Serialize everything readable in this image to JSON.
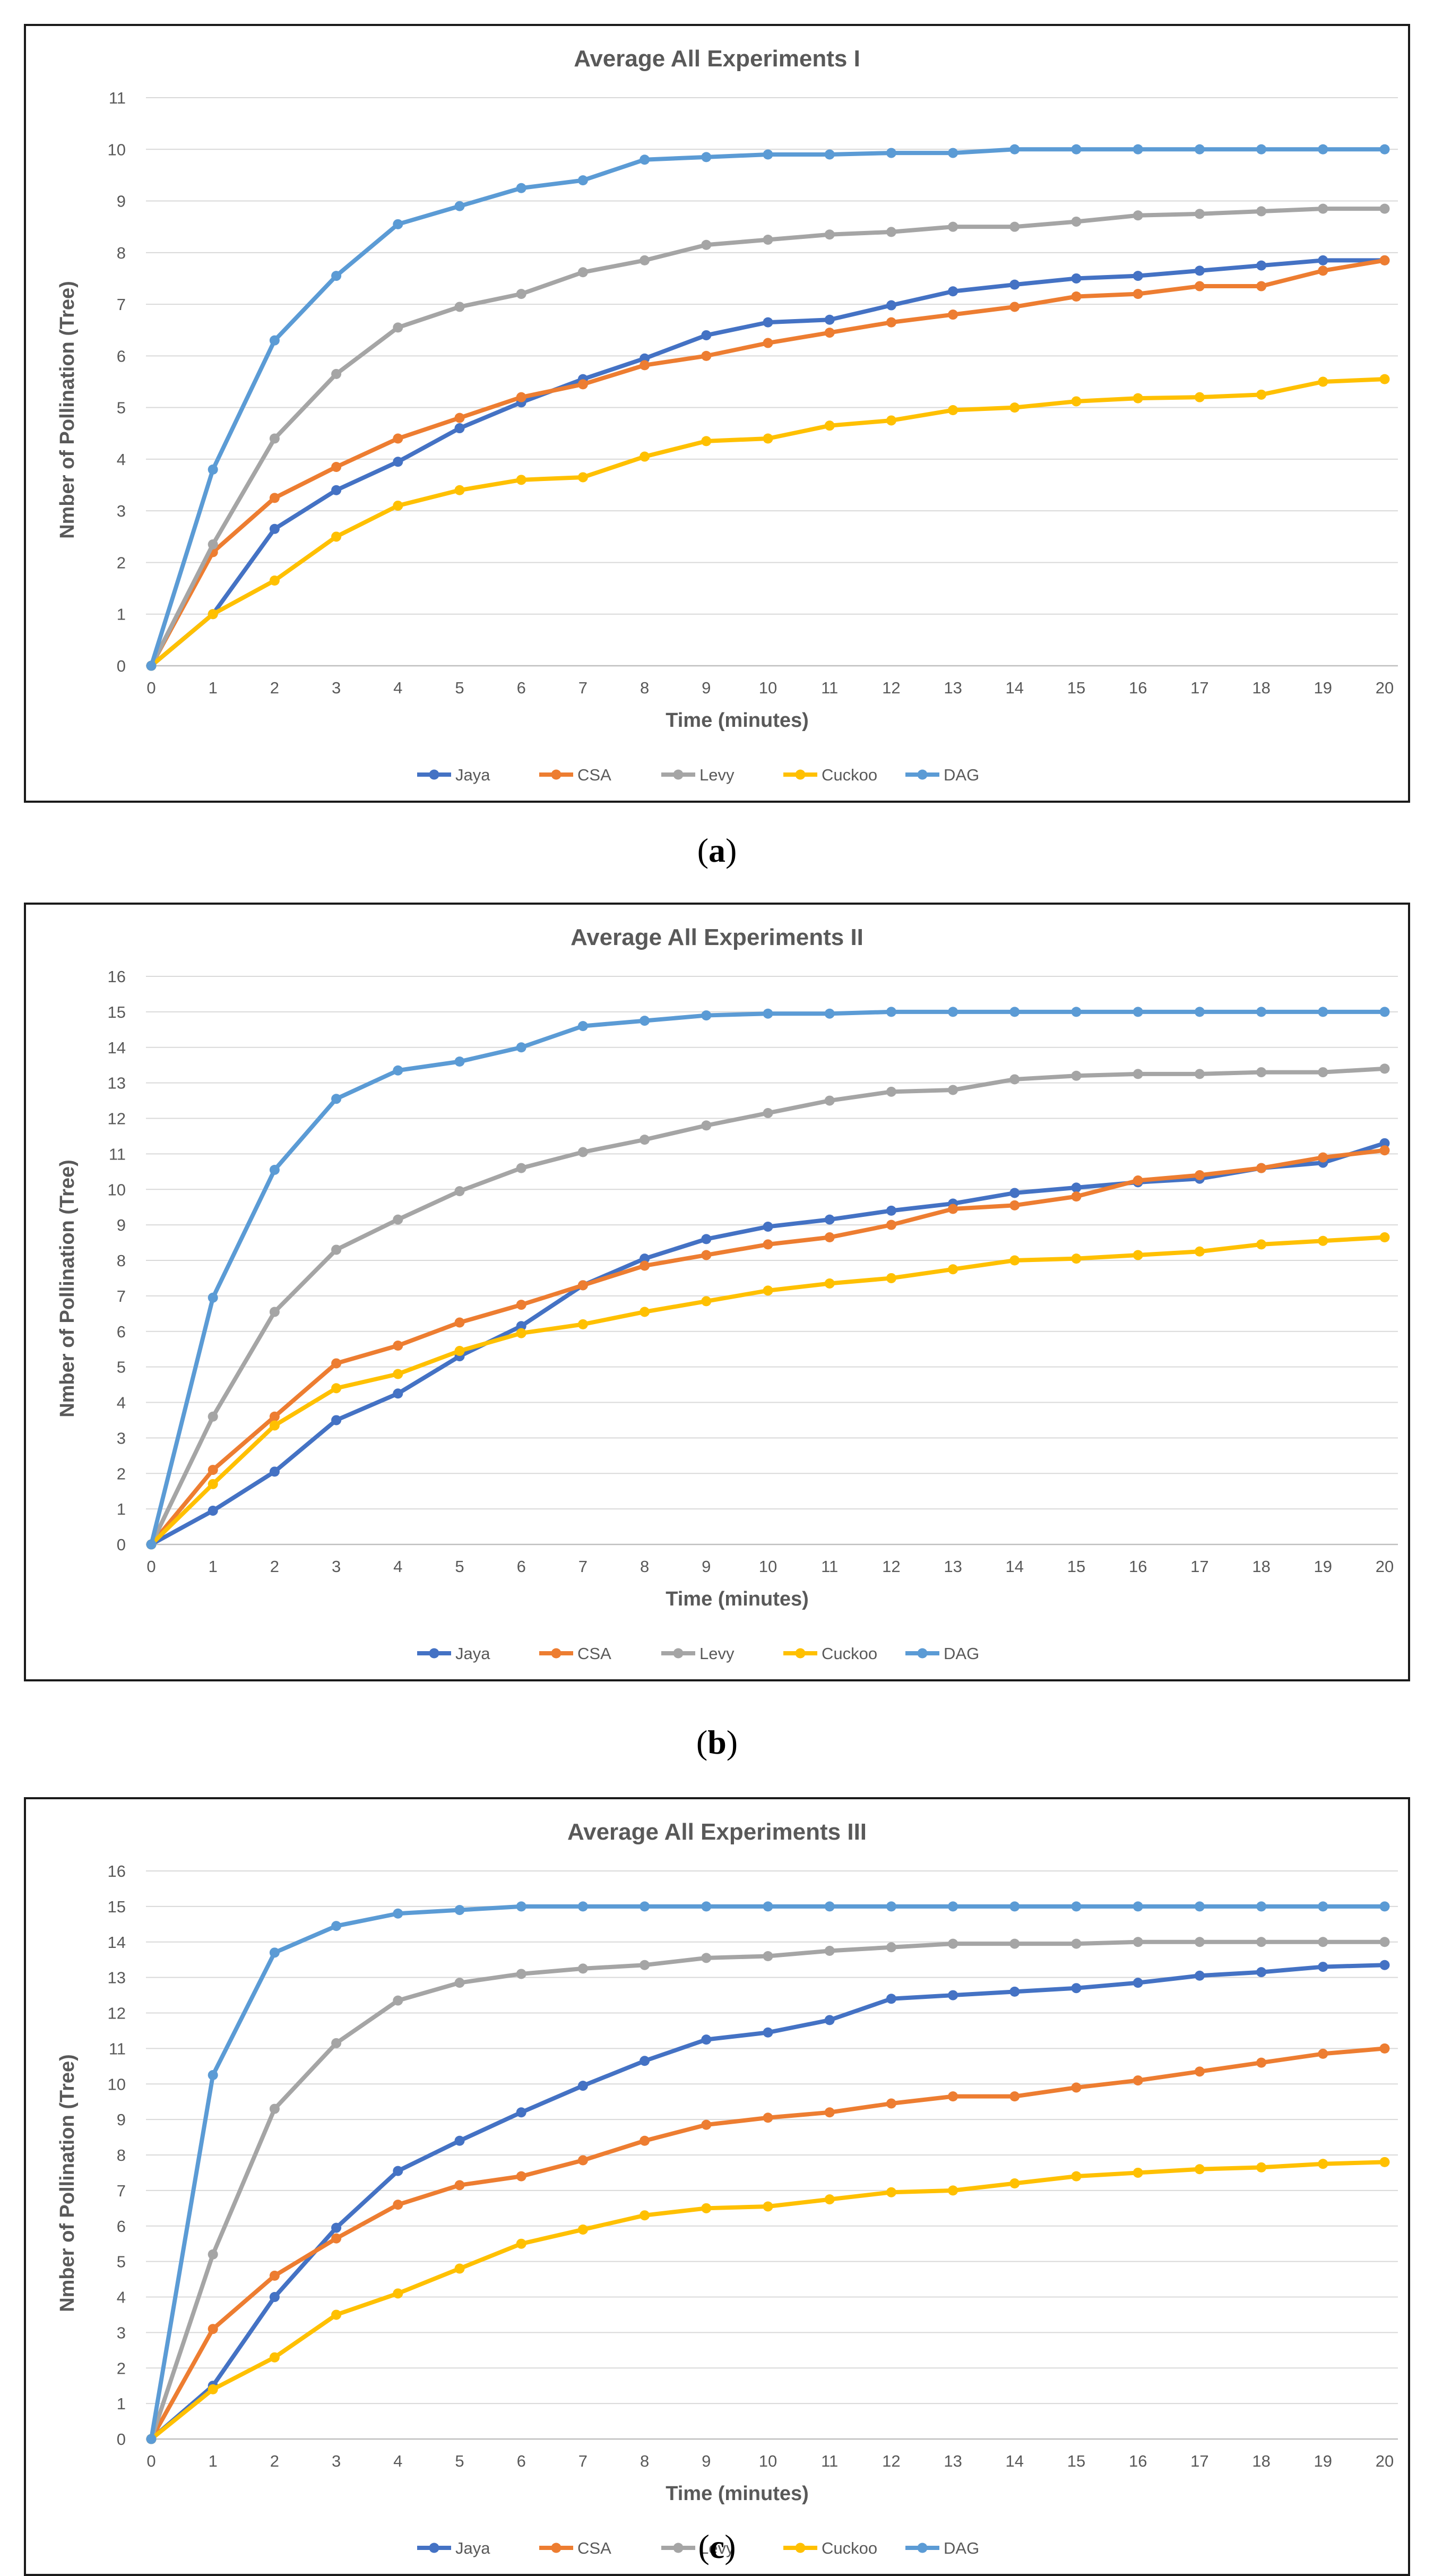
{
  "colors": {
    "Jaya": "#4472C4",
    "CSA": "#ED7D31",
    "Levy": "#A5A5A5",
    "Cuckoo": "#FFC000",
    "DAG": "#5B9BD5"
  },
  "captions": [
    {
      "open": "(",
      "letter": "a",
      "close": ")"
    },
    {
      "open": "(",
      "letter": "b",
      "close": ")"
    },
    {
      "open": "(",
      "letter": "c",
      "close": ")"
    }
  ],
  "chart_data": [
    {
      "type": "line",
      "title": "Average All Experiments I",
      "xlabel": "Time (minutes)",
      "ylabel": "Nmber of Pollination (Tree)",
      "x": [
        0,
        1,
        2,
        3,
        4,
        5,
        6,
        7,
        8,
        9,
        10,
        11,
        12,
        13,
        14,
        15,
        16,
        17,
        18,
        19,
        20
      ],
      "ylim": [
        0,
        11
      ],
      "yticks": [
        0,
        1,
        2,
        3,
        4,
        5,
        6,
        7,
        8,
        9,
        10,
        11
      ],
      "grid": true,
      "legend": "bottom",
      "series": [
        {
          "name": "Jaya",
          "values": [
            0,
            1.0,
            2.65,
            3.4,
            3.95,
            4.6,
            5.1,
            5.55,
            5.95,
            6.4,
            6.65,
            6.7,
            6.98,
            7.25,
            7.38,
            7.5,
            7.55,
            7.65,
            7.75,
            7.85,
            7.85
          ]
        },
        {
          "name": "CSA",
          "values": [
            0,
            2.2,
            3.25,
            3.85,
            4.4,
            4.8,
            5.2,
            5.45,
            5.82,
            6.0,
            6.25,
            6.45,
            6.65,
            6.8,
            6.95,
            7.15,
            7.2,
            7.35,
            7.35,
            7.65,
            7.85
          ]
        },
        {
          "name": "Levy",
          "values": [
            0,
            2.35,
            4.4,
            5.65,
            6.55,
            6.95,
            7.2,
            7.62,
            7.85,
            8.15,
            8.25,
            8.35,
            8.4,
            8.5,
            8.5,
            8.6,
            8.72,
            8.75,
            8.8,
            8.85,
            8.85
          ]
        },
        {
          "name": "Cuckoo",
          "values": [
            0,
            1.0,
            1.65,
            2.5,
            3.1,
            3.4,
            3.6,
            3.65,
            4.05,
            4.35,
            4.4,
            4.65,
            4.75,
            4.95,
            5.0,
            5.12,
            5.18,
            5.2,
            5.25,
            5.5,
            5.55
          ]
        },
        {
          "name": "DAG",
          "values": [
            0,
            3.8,
            6.3,
            7.55,
            8.55,
            8.9,
            9.25,
            9.4,
            9.8,
            9.85,
            9.9,
            9.9,
            9.93,
            9.93,
            10.0,
            10.0,
            10.0,
            10.0,
            10.0,
            10.0,
            10.0
          ]
        }
      ]
    },
    {
      "type": "line",
      "title": "Average All Experiments II",
      "xlabel": "Time (minutes)",
      "ylabel": "Nmber of Pollination (Tree)",
      "x": [
        0,
        1,
        2,
        3,
        4,
        5,
        6,
        7,
        8,
        9,
        10,
        11,
        12,
        13,
        14,
        15,
        16,
        17,
        18,
        19,
        20
      ],
      "ylim": [
        0,
        16
      ],
      "yticks": [
        0,
        1,
        2,
        3,
        4,
        5,
        6,
        7,
        8,
        9,
        10,
        11,
        12,
        13,
        14,
        15,
        16
      ],
      "grid": true,
      "legend": "bottom",
      "series": [
        {
          "name": "Jaya",
          "values": [
            0,
            0.95,
            2.05,
            3.5,
            4.25,
            5.3,
            6.15,
            7.3,
            8.05,
            8.6,
            8.95,
            9.15,
            9.4,
            9.6,
            9.9,
            10.05,
            10.2,
            10.3,
            10.6,
            10.75,
            11.3
          ]
        },
        {
          "name": "CSA",
          "values": [
            0,
            2.1,
            3.6,
            5.1,
            5.6,
            6.25,
            6.75,
            7.3,
            7.85,
            8.15,
            8.45,
            8.65,
            9.0,
            9.45,
            9.55,
            9.8,
            10.25,
            10.4,
            10.6,
            10.9,
            11.1
          ]
        },
        {
          "name": "Levy",
          "values": [
            0,
            3.6,
            6.55,
            8.3,
            9.15,
            9.95,
            10.6,
            11.05,
            11.4,
            11.8,
            12.15,
            12.5,
            12.75,
            12.8,
            13.1,
            13.2,
            13.25,
            13.25,
            13.3,
            13.3,
            13.4
          ]
        },
        {
          "name": "Cuckoo",
          "values": [
            0,
            1.7,
            3.35,
            4.4,
            4.8,
            5.45,
            5.95,
            6.2,
            6.55,
            6.85,
            7.15,
            7.35,
            7.5,
            7.75,
            8.0,
            8.05,
            8.15,
            8.25,
            8.45,
            8.55,
            8.65
          ]
        },
        {
          "name": "DAG",
          "values": [
            0,
            6.95,
            10.55,
            12.55,
            13.35,
            13.6,
            14.0,
            14.6,
            14.75,
            14.9,
            14.95,
            14.95,
            15.0,
            15.0,
            15.0,
            15.0,
            15.0,
            15.0,
            15.0,
            15.0,
            15.0
          ]
        }
      ]
    },
    {
      "type": "line",
      "title": "Average All Experiments III",
      "xlabel": "Time (minutes)",
      "ylabel": "Nmber of Pollination (Tree)",
      "x": [
        0,
        1,
        2,
        3,
        4,
        5,
        6,
        7,
        8,
        9,
        10,
        11,
        12,
        13,
        14,
        15,
        16,
        17,
        18,
        19,
        20
      ],
      "ylim": [
        0,
        16
      ],
      "yticks": [
        0,
        1,
        2,
        3,
        4,
        5,
        6,
        7,
        8,
        9,
        10,
        11,
        12,
        13,
        14,
        15,
        16
      ],
      "grid": true,
      "legend": "bottom",
      "series": [
        {
          "name": "Jaya",
          "values": [
            0,
            1.5,
            4.0,
            5.95,
            7.55,
            8.4,
            9.2,
            9.95,
            10.65,
            11.25,
            11.45,
            11.8,
            12.4,
            12.5,
            12.6,
            12.7,
            12.85,
            13.05,
            13.15,
            13.3,
            13.35
          ]
        },
        {
          "name": "CSA",
          "values": [
            0,
            3.1,
            4.6,
            5.65,
            6.6,
            7.15,
            7.4,
            7.85,
            8.4,
            8.85,
            9.05,
            9.2,
            9.45,
            9.65,
            9.65,
            9.9,
            10.1,
            10.35,
            10.6,
            10.85,
            11.0
          ]
        },
        {
          "name": "Levy",
          "values": [
            0,
            5.2,
            9.3,
            11.15,
            12.35,
            12.85,
            13.1,
            13.25,
            13.35,
            13.55,
            13.6,
            13.75,
            13.85,
            13.95,
            13.95,
            13.95,
            14.0,
            14.0,
            14.0,
            14.0,
            14.0
          ]
        },
        {
          "name": "Cuckoo",
          "values": [
            0,
            1.4,
            2.3,
            3.5,
            4.1,
            4.8,
            5.5,
            5.9,
            6.3,
            6.5,
            6.55,
            6.75,
            6.95,
            7.0,
            7.2,
            7.4,
            7.5,
            7.6,
            7.65,
            7.75,
            7.8
          ]
        },
        {
          "name": "DAG",
          "values": [
            0,
            10.25,
            13.7,
            14.45,
            14.8,
            14.9,
            15.0,
            15.0,
            15.0,
            15.0,
            15.0,
            15.0,
            15.0,
            15.0,
            15.0,
            15.0,
            15.0,
            15.0,
            15.0,
            15.0,
            15.0
          ]
        }
      ]
    }
  ]
}
